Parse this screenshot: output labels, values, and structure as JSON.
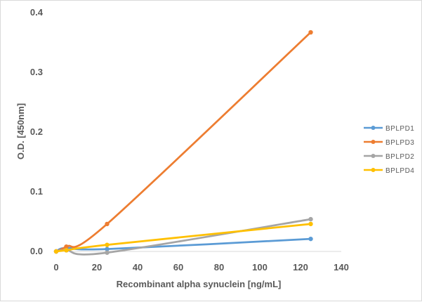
{
  "chart_data": {
    "type": "line",
    "xlabel": "Recombinant alpha synuclein [ng/mL]",
    "ylabel": "O.D. [450nm]",
    "xlim": [
      0,
      140
    ],
    "ylim": [
      0,
      0.4
    ],
    "x_ticks": [
      "0",
      "20",
      "40",
      "60",
      "80",
      "100",
      "120",
      "140"
    ],
    "y_ticks": [
      "0.0",
      "0.1",
      "0.2",
      "0.3",
      "0.4"
    ],
    "grid": false,
    "legend_position": "right",
    "smoothed": true,
    "series": [
      {
        "name": "BPLPD1",
        "color": "#5b9bd5",
        "x": [
          0,
          5,
          25,
          125
        ],
        "y": [
          0.0,
          0.006,
          0.004,
          0.021
        ]
      },
      {
        "name": "BPLPD3",
        "color": "#ed7d31",
        "x": [
          0,
          5,
          25,
          125
        ],
        "y": [
          0.0,
          0.008,
          0.046,
          0.367
        ]
      },
      {
        "name": "BPLPD2",
        "color": "#a5a5a5",
        "x": [
          0,
          5,
          25,
          125
        ],
        "y": [
          0.0,
          0.002,
          -0.002,
          0.054
        ]
      },
      {
        "name": "BPLPD4",
        "color": "#ffc000",
        "x": [
          0,
          5,
          25,
          125
        ],
        "y": [
          0.0,
          0.002,
          0.011,
          0.046
        ]
      }
    ]
  }
}
